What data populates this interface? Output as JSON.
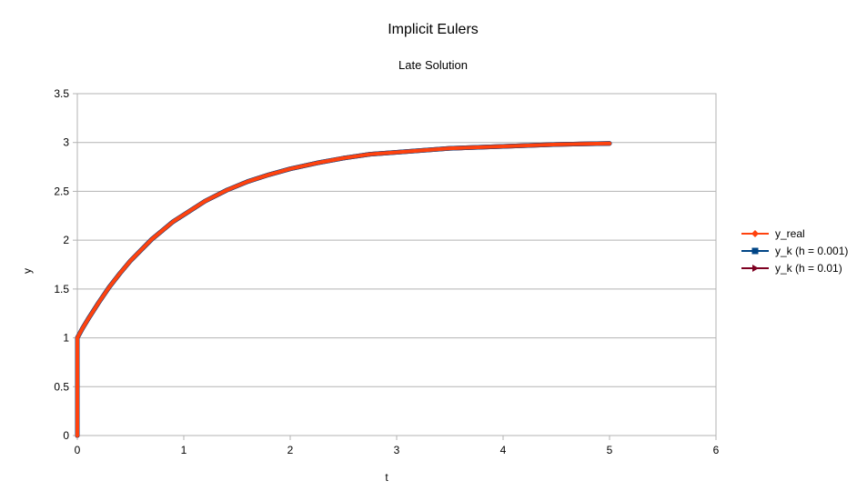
{
  "chart_data": {
    "type": "line",
    "title": "Implicit Eulers",
    "subtitle": "Late Solution",
    "xlabel": "t",
    "ylabel": "y",
    "xlim": [
      0,
      6
    ],
    "ylim": [
      0,
      3.5
    ],
    "x_ticks": [
      "0",
      "1",
      "2",
      "3",
      "4",
      "5",
      "6"
    ],
    "y_ticks": [
      "0",
      "0.5",
      "1",
      "1.5",
      "2",
      "2.5",
      "3",
      "3.5"
    ],
    "grid": true,
    "legend_position": "right",
    "series": [
      {
        "name": "y_real",
        "color": "#ff420e",
        "marker": "diamond",
        "points": [
          [
            0,
            0
          ],
          [
            0,
            0.5
          ],
          [
            0,
            1
          ],
          [
            0.05,
            1.1
          ],
          [
            0.1,
            1.19
          ],
          [
            0.2,
            1.36
          ],
          [
            0.3,
            1.52
          ],
          [
            0.4,
            1.66
          ],
          [
            0.5,
            1.79
          ],
          [
            0.6,
            1.9
          ],
          [
            0.7,
            2.01
          ],
          [
            0.8,
            2.1
          ],
          [
            0.9,
            2.19
          ],
          [
            1.0,
            2.26
          ],
          [
            1.2,
            2.4
          ],
          [
            1.4,
            2.51
          ],
          [
            1.6,
            2.6
          ],
          [
            1.8,
            2.67
          ],
          [
            2.0,
            2.73
          ],
          [
            2.25,
            2.79
          ],
          [
            2.5,
            2.84
          ],
          [
            2.75,
            2.88
          ],
          [
            3.0,
            2.9
          ],
          [
            3.5,
            2.94
          ],
          [
            4.0,
            2.96
          ],
          [
            4.5,
            2.98
          ],
          [
            5.0,
            2.99
          ]
        ]
      },
      {
        "name": "y_k (h = 0.001)",
        "color": "#004586",
        "marker": "square",
        "points": [
          [
            0,
            0
          ],
          [
            0,
            0.5
          ],
          [
            0,
            1
          ],
          [
            0.05,
            1.1
          ],
          [
            0.1,
            1.19
          ],
          [
            0.2,
            1.36
          ],
          [
            0.3,
            1.52
          ],
          [
            0.4,
            1.66
          ],
          [
            0.5,
            1.79
          ],
          [
            0.6,
            1.9
          ],
          [
            0.7,
            2.01
          ],
          [
            0.8,
            2.1
          ],
          [
            0.9,
            2.19
          ],
          [
            1.0,
            2.26
          ],
          [
            1.2,
            2.4
          ],
          [
            1.4,
            2.51
          ],
          [
            1.6,
            2.6
          ],
          [
            1.8,
            2.67
          ],
          [
            2.0,
            2.73
          ],
          [
            2.25,
            2.79
          ],
          [
            2.5,
            2.84
          ],
          [
            2.75,
            2.88
          ],
          [
            3.0,
            2.9
          ],
          [
            3.5,
            2.94
          ],
          [
            4.0,
            2.96
          ],
          [
            4.5,
            2.98
          ],
          [
            5.0,
            2.99
          ]
        ]
      },
      {
        "name": "y_k (h = 0.01)",
        "color": "#7e0021",
        "marker": "triangle-right",
        "points": [
          [
            0,
            0
          ],
          [
            0,
            0.5
          ],
          [
            0,
            0.75
          ],
          [
            0,
            1
          ],
          [
            0.05,
            1.1
          ],
          [
            0.1,
            1.19
          ],
          [
            0.2,
            1.36
          ],
          [
            0.3,
            1.52
          ],
          [
            0.4,
            1.66
          ],
          [
            0.5,
            1.79
          ],
          [
            0.6,
            1.9
          ],
          [
            0.7,
            2.01
          ],
          [
            0.8,
            2.1
          ],
          [
            0.9,
            2.19
          ],
          [
            1.0,
            2.26
          ],
          [
            1.2,
            2.4
          ],
          [
            1.4,
            2.51
          ],
          [
            1.6,
            2.6
          ],
          [
            1.8,
            2.67
          ],
          [
            2.0,
            2.73
          ],
          [
            2.25,
            2.79
          ],
          [
            2.5,
            2.84
          ],
          [
            2.75,
            2.88
          ],
          [
            3.0,
            2.9
          ],
          [
            3.5,
            2.94
          ],
          [
            4.0,
            2.96
          ],
          [
            4.5,
            2.98
          ],
          [
            5.0,
            2.99
          ]
        ]
      }
    ]
  }
}
